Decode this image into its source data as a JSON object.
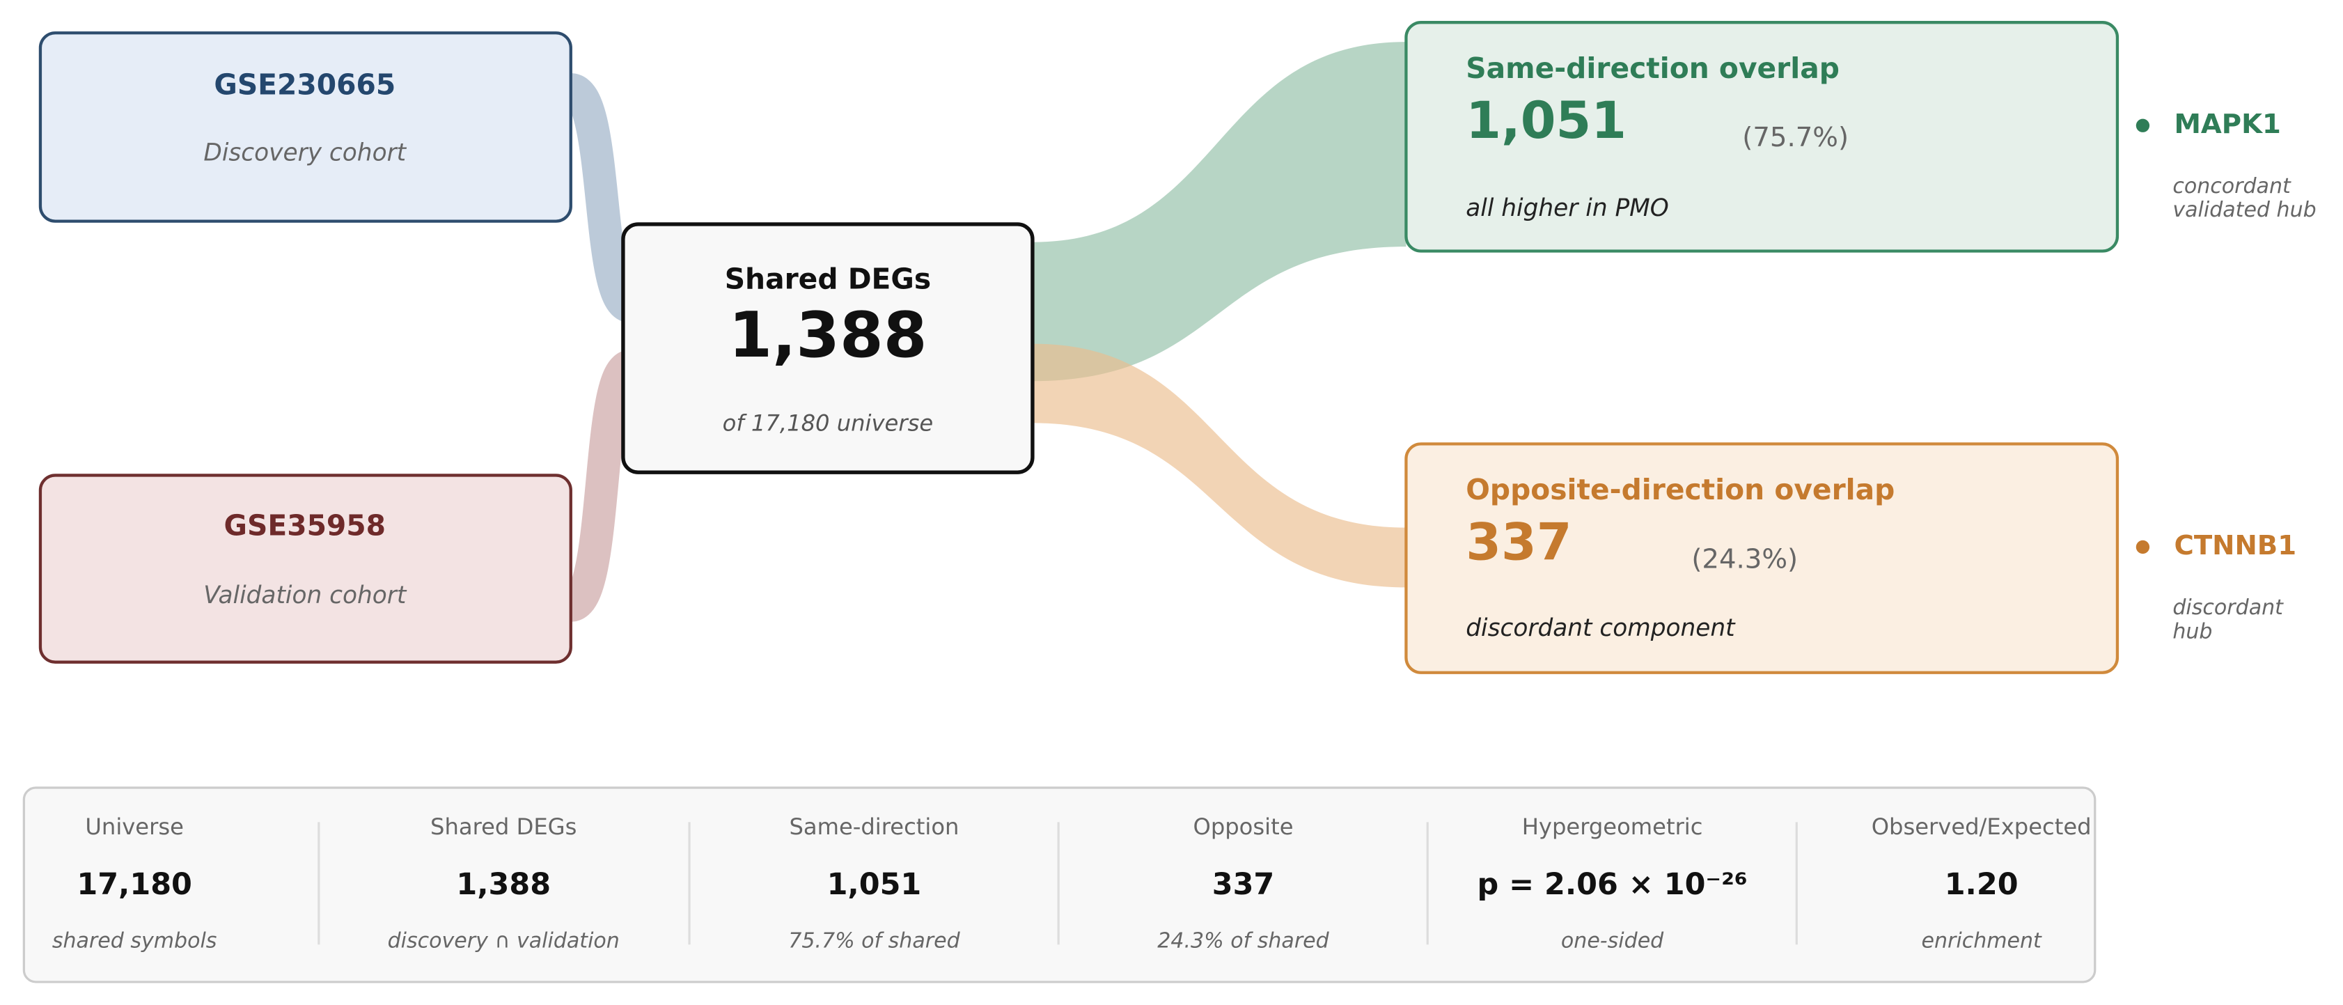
{
  "sources": [
    {
      "id": "GSE230665",
      "subtitle": "Discovery cohort"
    },
    {
      "id": "GSE35958",
      "subtitle": "Validation cohort"
    }
  ],
  "center": {
    "title": "Shared DEGs",
    "value": "1,388",
    "note": "of 17,180 universe"
  },
  "outcomes": [
    {
      "title": "Same-direction overlap",
      "value": "1,051",
      "percent": "(75.7%)",
      "note": "all higher in PMO",
      "hub": "MAPK1",
      "hub_note": [
        "concordant",
        "validated hub"
      ]
    },
    {
      "title": "Opposite-direction overlap",
      "value": "337",
      "percent": "(24.3%)",
      "note": "discordant component",
      "hub": "CTNNB1",
      "hub_note": [
        "discordant",
        "hub"
      ]
    }
  ],
  "stats": [
    {
      "label": "Universe",
      "value": "17,180",
      "note": "shared symbols"
    },
    {
      "label": "Shared DEGs",
      "value": "1,388",
      "note": "discovery ∩ validation"
    },
    {
      "label": "Same-direction",
      "value": "1,051",
      "note": "75.7% of shared"
    },
    {
      "label": "Opposite",
      "value": "337",
      "note": "24.3% of shared"
    },
    {
      "label": "Hypergeometric",
      "value": "p = 2.06 × 10⁻²⁶",
      "note": "one-sided"
    },
    {
      "label": "Observed/Expected",
      "value": "1.20",
      "note": "enrichment"
    }
  ]
}
